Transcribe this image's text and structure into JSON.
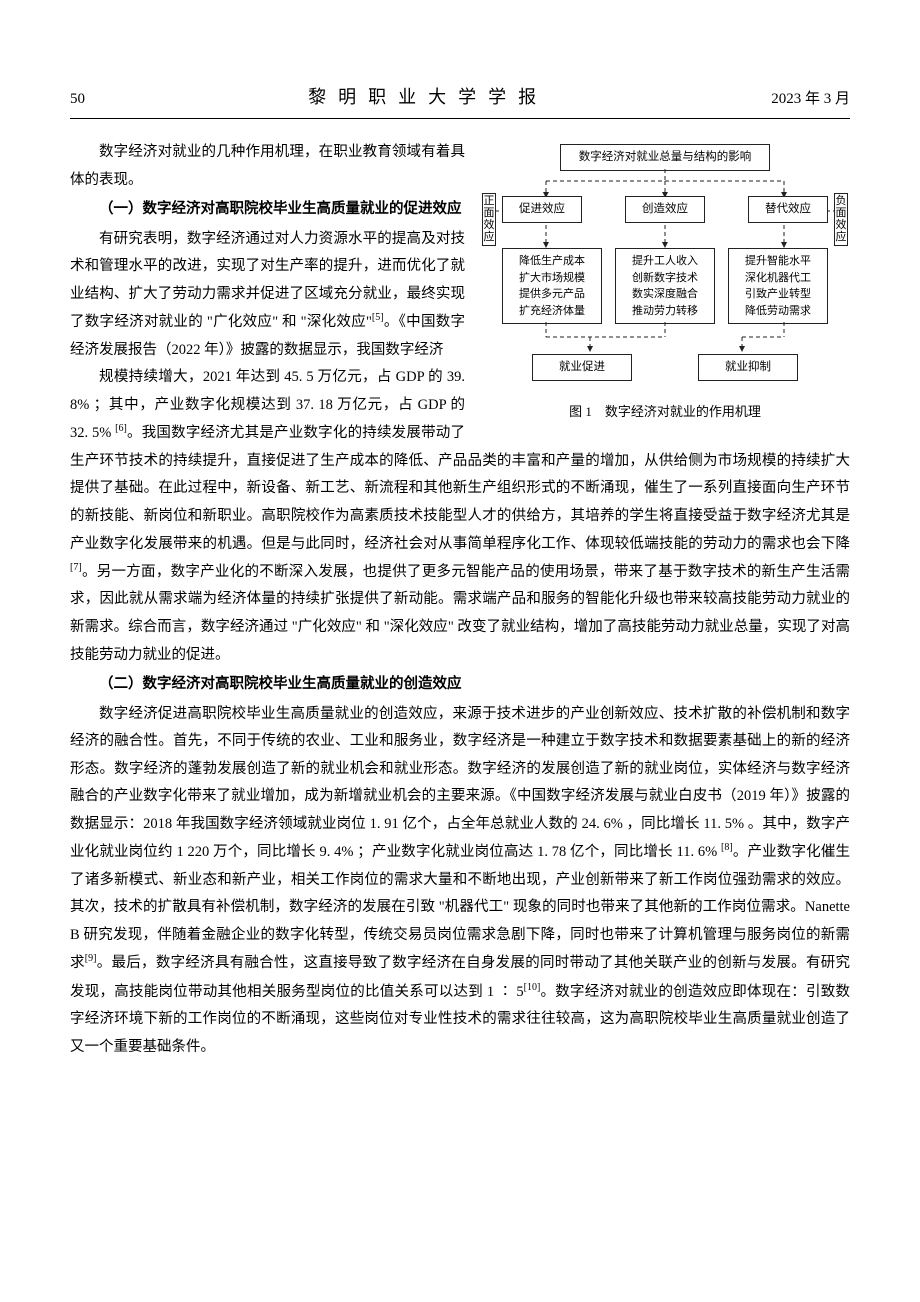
{
  "header": {
    "page_number": "50",
    "journal_title": "黎明职业大学学报",
    "date": "2023 年 3 月"
  },
  "intro_para": "数字经济对就业的几种作用机理，在职业教育领域有着具体的表现。",
  "section1": {
    "title": "（一）数字经济对高职院校毕业生高质量就业的促进效应",
    "para_narrow": "有研究表明，数字经济通过对人力资源水平的提高及对技术和管理水平的改进，实现了对生产率的提升，进而优化了就业结构、扩大了劳动力需求并促进了区域充分就业，最终实现了数字经济对就业的 \"广化效应\" 和 \"深化效应\"[5]。《中国数字经济发展报告（2022 年）》披露的数据显示，我国数字经济",
    "para_full": "规模持续增大，2021 年达到 45. 5 万亿元，占 GDP 的 39. 8% ；其中，产业数字化规模达到 37. 18 万亿元，占 GDP 的 32. 5% [6]。我国数字经济尤其是产业数字化的持续发展带动了生产环节技术的持续提升，直接促进了生产成本的降低、产品品类的丰富和产量的增加，从供给侧为市场规模的持续扩大提供了基础。在此过程中，新设备、新工艺、新流程和其他新生产组织形式的不断涌现，催生了一系列直接面向生产环节的新技能、新岗位和新职业。高职院校作为高素质技术技能型人才的供给方，其培养的学生将直接受益于数字经济尤其是产业数字化发展带来的机遇。但是与此同时，经济社会对从事简单程序化工作、体现较低端技能的劳动力的需求也会下降[7]。另一方面，数字产业化的不断深入发展，也提供了更多元智能产品的使用场景，带来了基于数字技术的新生产生活需求，因此就从需求端为经济体量的持续扩张提供了新动能。需求端产品和服务的智能化升级也带来较高技能劳动力就业的新需求。综合而言，数字经济通过 \"广化效应\" 和 \"深化效应\" 改变了就业结构，增加了高技能劳动力就业总量，实现了对高技能劳动力就业的促进。"
  },
  "section2": {
    "title": "（二）数字经济对高职院校毕业生高质量就业的创造效应",
    "para": "数字经济促进高职院校毕业生高质量就业的创造效应，来源于技术进步的产业创新效应、技术扩散的补偿机制和数字经济的融合性。首先，不同于传统的农业、工业和服务业，数字经济是一种建立于数字技术和数据要素基础上的新的经济形态。数字经济的蓬勃发展创造了新的就业机会和就业形态。数字经济的发展创造了新的就业岗位，实体经济与数字经济融合的产业数字化带来了就业增加，成为新增就业机会的主要来源。《中国数字经济发展与就业白皮书（2019 年）》披露的数据显示：2018 年我国数字经济领域就业岗位 1. 91 亿个，占全年总就业人数的 24. 6% ，同比增长 11. 5% 。其中，数字产业化就业岗位约 1 220 万个，同比增长 9. 4% ；产业数字化就业岗位高达 1. 78 亿个，同比增长 11. 6% [8]。产业数字化催生了诸多新模式、新业态和新产业，相关工作岗位的需求大量和不断地出现，产业创新带来了新工作岗位强劲需求的效应。其次，技术的扩散具有补偿机制，数字经济的发展在引致 \"机器代工\" 现象的同时也带来了其他新的工作岗位需求。Nanette B 研究发现，伴随着金融企业的数字化转型，传统交易员岗位需求急剧下降，同时也带来了计算机管理与服务岗位的新需求[9]。最后，数字经济具有融合性，这直接导致了数字经济在自身发展的同时带动了其他关联产业的创新与发展。有研究发现，高技能岗位带动其他相关服务型岗位的比值关系可以达到 1 ∶ 5[10]。数字经济对就业的创造效应即体现在：引致数字经济环境下新的工作岗位的不断涌现，这些岗位对专业性技术的需求往往较高，这为高职院校毕业生高质量就业创造了又一个重要基础条件。"
  },
  "figure": {
    "caption": "图 1　数字经济对就业的作用机理",
    "nodes": {
      "top": "数字经济对就业总量与结构的影响",
      "side_left": "正面效应",
      "side_right": "负面效应",
      "mid": [
        "促进效应",
        "创造效应",
        "替代效应"
      ],
      "detail": [
        "降低生产成本\n扩大市场规模\n提供多元产品\n扩充经济体量",
        "提升工人收入\n创新数字技术\n数实深度融合\n推动劳力转移",
        "提升智能水平\n深化机器代工\n引致产业转型\n降低劳动需求"
      ],
      "bottom": [
        "就业促进",
        "就业抑制"
      ]
    },
    "style": {
      "box_border": "#222222",
      "line_color": "#222222",
      "dash_pattern": "4,3",
      "background": "#ffffff",
      "font_size_box": 11.5,
      "font_size_caption": 13
    }
  }
}
